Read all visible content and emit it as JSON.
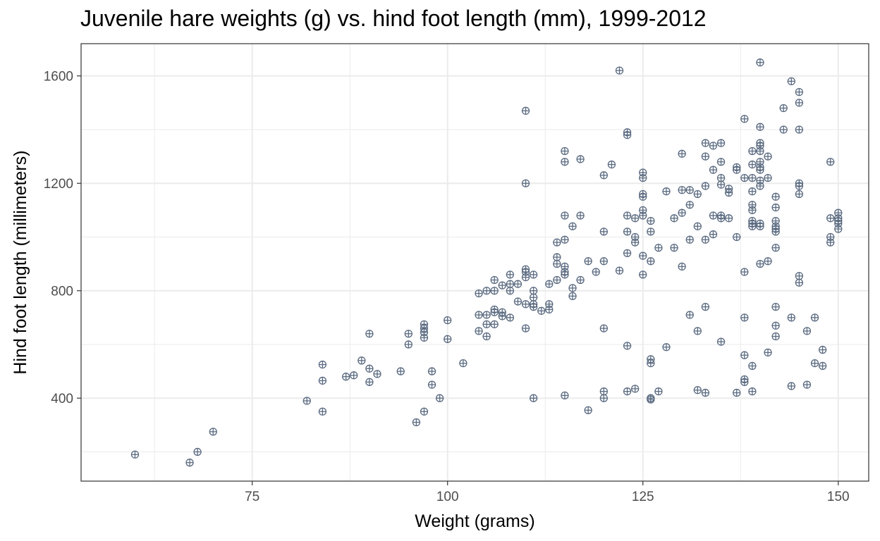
{
  "chart_data": {
    "type": "scatter",
    "title": "Juvenile hare weights (g) vs. hind foot length (mm), 1999-2012",
    "xlabel": "Weight (grams)",
    "ylabel": "Hind foot length (millimeters)",
    "xlim": [
      53.1,
      153.9
    ],
    "ylim": [
      91,
      1720
    ],
    "x_ticks": [
      75,
      100,
      125,
      150
    ],
    "y_ticks": [
      400,
      800,
      1200,
      1600
    ],
    "grid": true,
    "point_color": "#5a6a80",
    "points": [
      [
        60,
        190
      ],
      [
        67,
        160
      ],
      [
        68,
        200
      ],
      [
        70,
        275
      ],
      [
        82,
        390
      ],
      [
        84,
        525
      ],
      [
        84,
        465
      ],
      [
        84,
        350
      ],
      [
        87,
        480
      ],
      [
        88,
        485
      ],
      [
        89,
        540
      ],
      [
        90,
        640
      ],
      [
        90,
        510
      ],
      [
        90,
        460
      ],
      [
        91,
        490
      ],
      [
        94,
        500
      ],
      [
        95,
        640
      ],
      [
        95,
        600
      ],
      [
        96,
        310
      ],
      [
        97,
        675
      ],
      [
        97,
        660
      ],
      [
        97,
        645
      ],
      [
        97,
        625
      ],
      [
        97,
        350
      ],
      [
        98,
        500
      ],
      [
        98,
        450
      ],
      [
        99,
        400
      ],
      [
        100,
        690
      ],
      [
        100,
        620
      ],
      [
        102,
        530
      ],
      [
        104,
        790
      ],
      [
        104,
        710
      ],
      [
        104,
        650
      ],
      [
        105,
        800
      ],
      [
        105,
        710
      ],
      [
        105,
        675
      ],
      [
        105,
        630
      ],
      [
        106,
        840
      ],
      [
        106,
        800
      ],
      [
        106,
        730
      ],
      [
        106,
        720
      ],
      [
        106,
        675
      ],
      [
        107,
        820
      ],
      [
        107,
        720
      ],
      [
        107,
        705
      ],
      [
        108,
        860
      ],
      [
        108,
        825
      ],
      [
        108,
        800
      ],
      [
        108,
        700
      ],
      [
        109,
        825
      ],
      [
        109,
        760
      ],
      [
        110,
        880
      ],
      [
        110,
        870
      ],
      [
        110,
        850
      ],
      [
        110,
        750
      ],
      [
        110,
        660
      ],
      [
        110,
        1470
      ],
      [
        110,
        1200
      ],
      [
        111,
        860
      ],
      [
        111,
        800
      ],
      [
        111,
        775
      ],
      [
        111,
        750
      ],
      [
        111,
        740
      ],
      [
        111,
        400
      ],
      [
        112,
        725
      ],
      [
        113,
        825
      ],
      [
        113,
        750
      ],
      [
        113,
        730
      ],
      [
        114,
        980
      ],
      [
        114,
        925
      ],
      [
        114,
        900
      ],
      [
        114,
        840
      ],
      [
        115,
        990
      ],
      [
        115,
        890
      ],
      [
        115,
        870
      ],
      [
        115,
        860
      ],
      [
        115,
        1080
      ],
      [
        115,
        1320
      ],
      [
        115,
        1280
      ],
      [
        115,
        410
      ],
      [
        116,
        1040
      ],
      [
        116,
        810
      ],
      [
        116,
        780
      ],
      [
        117,
        1290
      ],
      [
        117,
        1080
      ],
      [
        117,
        840
      ],
      [
        118,
        910
      ],
      [
        118,
        355
      ],
      [
        119,
        870
      ],
      [
        120,
        1230
      ],
      [
        120,
        1020
      ],
      [
        120,
        910
      ],
      [
        120,
        660
      ],
      [
        120,
        425
      ],
      [
        120,
        400
      ],
      [
        121,
        1270
      ],
      [
        122,
        1620
      ],
      [
        122,
        875
      ],
      [
        123,
        1390
      ],
      [
        123,
        1380
      ],
      [
        123,
        1080
      ],
      [
        123,
        1020
      ],
      [
        123,
        940
      ],
      [
        123,
        595
      ],
      [
        123,
        425
      ],
      [
        124,
        1070
      ],
      [
        124,
        1000
      ],
      [
        124,
        980
      ],
      [
        124,
        435
      ],
      [
        125,
        1240
      ],
      [
        125,
        1220
      ],
      [
        125,
        1160
      ],
      [
        125,
        1150
      ],
      [
        125,
        1100
      ],
      [
        125,
        1080
      ],
      [
        125,
        930
      ],
      [
        125,
        860
      ],
      [
        126,
        1060
      ],
      [
        126,
        1020
      ],
      [
        126,
        910
      ],
      [
        126,
        545
      ],
      [
        126,
        530
      ],
      [
        126,
        400
      ],
      [
        126,
        395
      ],
      [
        127,
        960
      ],
      [
        127,
        425
      ],
      [
        128,
        1170
      ],
      [
        128,
        590
      ],
      [
        129,
        1070
      ],
      [
        129,
        960
      ],
      [
        130,
        1310
      ],
      [
        130,
        1175
      ],
      [
        130,
        1090
      ],
      [
        130,
        890
      ],
      [
        131,
        1175
      ],
      [
        131,
        1120
      ],
      [
        131,
        990
      ],
      [
        131,
        710
      ],
      [
        132,
        1160
      ],
      [
        132,
        1040
      ],
      [
        132,
        650
      ],
      [
        132,
        430
      ],
      [
        133,
        1350
      ],
      [
        133,
        1300
      ],
      [
        133,
        1190
      ],
      [
        133,
        990
      ],
      [
        133,
        740
      ],
      [
        133,
        420
      ],
      [
        134,
        1340
      ],
      [
        134,
        1250
      ],
      [
        134,
        1080
      ],
      [
        134,
        1010
      ],
      [
        135,
        1350
      ],
      [
        135,
        1280
      ],
      [
        135,
        1220
      ],
      [
        135,
        1195
      ],
      [
        135,
        1080
      ],
      [
        135,
        1070
      ],
      [
        135,
        610
      ],
      [
        136,
        1180
      ],
      [
        136,
        1165
      ],
      [
        136,
        1070
      ],
      [
        137,
        1260
      ],
      [
        137,
        1250
      ],
      [
        137,
        1000
      ],
      [
        137,
        420
      ],
      [
        138,
        1440
      ],
      [
        138,
        1220
      ],
      [
        138,
        870
      ],
      [
        138,
        700
      ],
      [
        138,
        560
      ],
      [
        138,
        470
      ],
      [
        138,
        460
      ],
      [
        139,
        1320
      ],
      [
        139,
        1270
      ],
      [
        139,
        1220
      ],
      [
        139,
        1170
      ],
      [
        139,
        1120
      ],
      [
        139,
        1100
      ],
      [
        139,
        1060
      ],
      [
        139,
        1050
      ],
      [
        139,
        1040
      ],
      [
        139,
        520
      ],
      [
        139,
        425
      ],
      [
        140,
        1650
      ],
      [
        140,
        1410
      ],
      [
        140,
        1350
      ],
      [
        140,
        1340
      ],
      [
        140,
        1320
      ],
      [
        140,
        1280
      ],
      [
        140,
        1260
      ],
      [
        140,
        1250
      ],
      [
        140,
        1210
      ],
      [
        140,
        1190
      ],
      [
        140,
        1050
      ],
      [
        140,
        1040
      ],
      [
        140,
        900
      ],
      [
        141,
        1300
      ],
      [
        141,
        1220
      ],
      [
        141,
        910
      ],
      [
        141,
        570
      ],
      [
        142,
        1150
      ],
      [
        142,
        1110
      ],
      [
        142,
        1060
      ],
      [
        142,
        1040
      ],
      [
        142,
        1030
      ],
      [
        142,
        1020
      ],
      [
        142,
        960
      ],
      [
        142,
        740
      ],
      [
        142,
        670
      ],
      [
        142,
        630
      ],
      [
        143,
        1480
      ],
      [
        143,
        1400
      ],
      [
        144,
        1580
      ],
      [
        144,
        700
      ],
      [
        144,
        445
      ],
      [
        145,
        1540
      ],
      [
        145,
        1500
      ],
      [
        145,
        1400
      ],
      [
        145,
        1200
      ],
      [
        145,
        1190
      ],
      [
        145,
        1160
      ],
      [
        145,
        855
      ],
      [
        145,
        830
      ],
      [
        146,
        650
      ],
      [
        146,
        450
      ],
      [
        147,
        700
      ],
      [
        147,
        530
      ],
      [
        148,
        580
      ],
      [
        148,
        520
      ],
      [
        149,
        1280
      ],
      [
        149,
        1070
      ],
      [
        149,
        1000
      ],
      [
        149,
        980
      ],
      [
        150,
        1090
      ],
      [
        150,
        1070
      ],
      [
        150,
        1060
      ],
      [
        150,
        1050
      ],
      [
        150,
        1030
      ]
    ]
  }
}
